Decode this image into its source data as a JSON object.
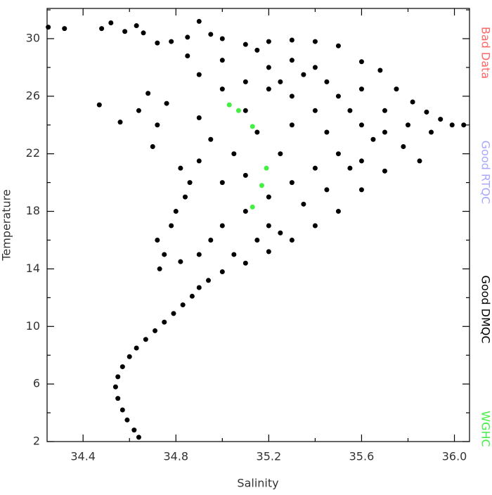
{
  "chart_data": {
    "type": "scatter",
    "x_label": "Salinity",
    "y_label": "Temperature",
    "xlim": [
      34.245,
      36.065
    ],
    "ylim": [
      2,
      32.1
    ],
    "xticks": [
      34.4,
      34.8,
      35.2,
      35.6,
      {
        "value": 36,
        "label": "36.0"
      }
    ],
    "yticks": [
      2,
      6,
      10,
      14,
      18,
      22,
      26,
      30
    ],
    "xminorticks": [
      34.6,
      35.0,
      35.4,
      35.8
    ],
    "yminorticks": [
      4,
      8,
      12,
      16,
      20,
      24,
      28,
      32
    ],
    "marker_radius": 3.5,
    "series": [
      {
        "name": "Bad Data",
        "color": "#ff6666",
        "x": [],
        "values": []
      },
      {
        "name": "Good RTQC",
        "color": "#a8a8ff",
        "x": [],
        "values": []
      },
      {
        "name": "Good DMQC",
        "color": "#000000",
        "x": [
          34.64,
          34.62,
          34.59,
          34.57,
          34.55,
          34.54,
          34.55,
          34.57,
          34.6,
          34.63,
          34.67,
          34.71,
          34.75,
          34.79,
          34.83,
          34.87,
          34.9,
          34.94,
          34.73,
          34.75,
          34.72,
          34.78,
          34.8,
          34.84,
          34.86,
          34.82,
          34.7,
          34.72,
          34.64,
          34.56,
          34.47,
          34.68,
          34.76,
          34.25,
          34.32,
          34.48,
          34.52,
          34.58,
          34.63,
          34.66,
          34.72,
          34.78,
          34.85,
          34.9,
          34.95,
          35.0,
          35.1,
          35.2,
          35.3,
          35.4,
          35.5,
          35.6,
          35.68,
          35.75,
          35.82,
          35.88,
          35.94,
          35.99,
          36.04,
          35.9,
          35.85,
          35.78,
          35.7,
          35.6,
          35.5,
          35.4,
          35.3,
          35.2,
          35.1,
          35.0,
          35.0,
          35.1,
          35.2,
          35.25,
          35.3,
          35.35,
          35.4,
          35.45,
          35.5,
          35.55,
          35.6,
          35.65,
          35.5,
          35.4,
          35.3,
          35.2,
          35.1,
          35.0,
          34.95,
          34.9,
          35.05,
          34.95,
          34.9,
          35.15,
          35.3,
          35.45,
          35.55,
          35.35,
          35.2,
          35.0,
          34.9,
          35.1,
          35.2,
          35.0,
          34.9,
          35.6,
          35.7,
          35.8,
          35.7,
          35.25,
          35.1,
          35.4,
          35.3,
          35.15,
          34.85,
          35.45,
          35.6,
          34.82,
          35.05,
          35.25,
          35.15
        ],
        "values": [
          2.3,
          2.8,
          3.5,
          4.2,
          5,
          5.8,
          6.5,
          7.2,
          7.9,
          8.5,
          9.1,
          9.7,
          10.3,
          10.9,
          11.5,
          12.1,
          12.7,
          13.2,
          14,
          15,
          16,
          17,
          18,
          19,
          20,
          21,
          22.5,
          24,
          25,
          24.2,
          25.4,
          26.2,
          25.5,
          30.8,
          30.7,
          30.7,
          31.1,
          30.5,
          30.9,
          30.4,
          29.7,
          29.8,
          30.1,
          31.2,
          30.3,
          30,
          29.6,
          29.8,
          29.9,
          29.8,
          29.5,
          28.4,
          27.8,
          26.5,
          25.6,
          24.9,
          24.4,
          24,
          24,
          23.5,
          21.5,
          22.5,
          20.8,
          19.5,
          18,
          17,
          16,
          15.2,
          14.4,
          13.8,
          26.5,
          27,
          26.5,
          27,
          26,
          27.5,
          28,
          27,
          26,
          25,
          24,
          23,
          22,
          21,
          20,
          19,
          18,
          17,
          16,
          15,
          22,
          23,
          24.5,
          23.5,
          24,
          23.5,
          21,
          18.5,
          17,
          20,
          21.5,
          25,
          28,
          28.5,
          27.5,
          26.5,
          25,
          24,
          23.5,
          22,
          20.5,
          25,
          28.5,
          29.2,
          28.8,
          19.5,
          21.5,
          14.5,
          15,
          16.5,
          16
        ]
      },
      {
        "name": "WGHC",
        "color": "#44ee44",
        "x": [
          35.03,
          35.07,
          35.13,
          35.19,
          35.17,
          35.13
        ],
        "values": [
          25.4,
          25,
          23.9,
          21,
          19.8,
          18.3
        ]
      }
    ]
  }
}
